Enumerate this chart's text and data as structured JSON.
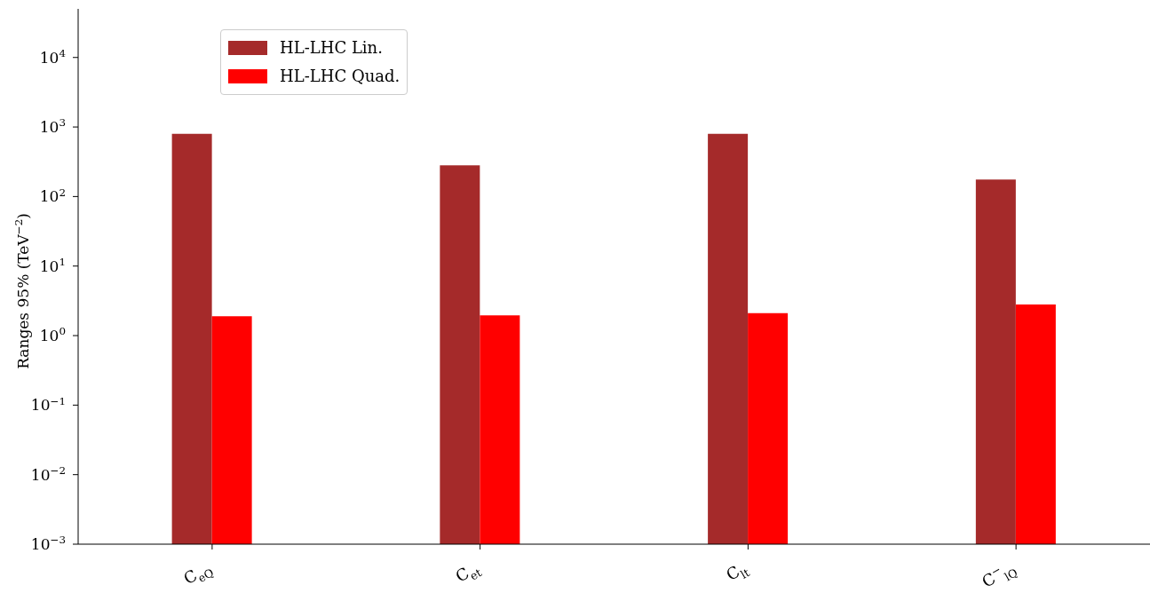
{
  "chart_data": {
    "type": "bar",
    "ylabel": "Ranges 95% (TeV$^{−2}$)",
    "categories": [
      "C$_{eQ}$",
      "C$_{et}$",
      "C$_{lt}$",
      "C$^{−}$$_{lQ}$"
    ],
    "series": [
      {
        "name": "HL-LHC Lin.",
        "color": "#a52a2a",
        "values": [
          800,
          280,
          800,
          175
        ]
      },
      {
        "name": "HL-LHC Quad.",
        "color": "#ff0000",
        "values": [
          1.9,
          1.95,
          2.1,
          2.8
        ]
      }
    ],
    "log": true,
    "ylim": [
      0.001,
      50000
    ],
    "yticks": [
      {
        "value": 0.001,
        "label": "10$^{−3}$"
      },
      {
        "value": 0.01,
        "label": "10$^{−2}$"
      },
      {
        "value": 0.1,
        "label": "10$^{−1}$"
      },
      {
        "value": 1,
        "label": "10$^{0}$"
      },
      {
        "value": 10,
        "label": "10$^{1}$"
      },
      {
        "value": 100,
        "label": "10$^{2}$"
      },
      {
        "value": 1000,
        "label": "10$^{3}$"
      },
      {
        "value": 10000,
        "label": "10$^{4}$"
      }
    ],
    "grid": false,
    "legend": "top left"
  }
}
